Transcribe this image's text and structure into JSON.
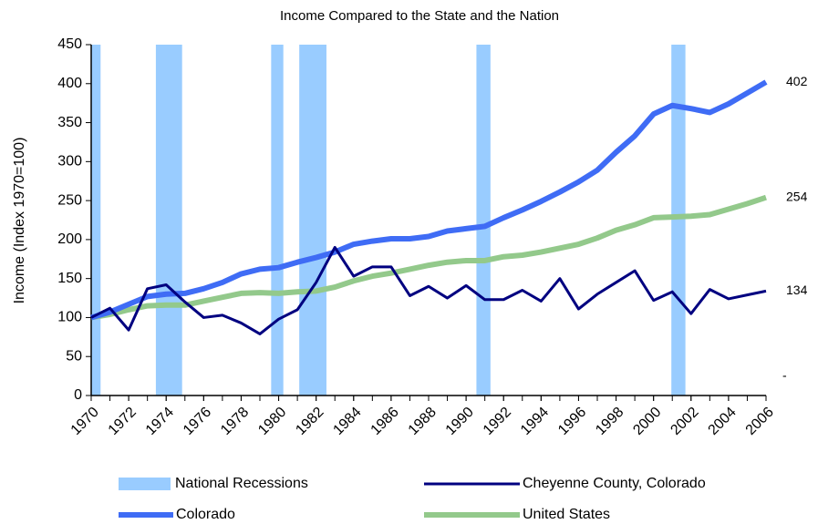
{
  "chart_data": {
    "type": "line",
    "title": "Income Compared to the State and the Nation",
    "y_label": "Income (Index 1970=100)",
    "x": [
      1970,
      1971,
      1972,
      1973,
      1974,
      1975,
      1976,
      1977,
      1978,
      1979,
      1980,
      1981,
      1982,
      1983,
      1984,
      1985,
      1986,
      1987,
      1988,
      1989,
      1990,
      1991,
      1992,
      1993,
      1994,
      1995,
      1996,
      1997,
      1998,
      1999,
      2000,
      2001,
      2002,
      2003,
      2004,
      2005,
      2006
    ],
    "xlim": [
      1970,
      2006
    ],
    "xticks": [
      1970,
      1972,
      1974,
      1976,
      1978,
      1980,
      1982,
      1984,
      1986,
      1988,
      1990,
      1992,
      1994,
      1996,
      1998,
      2000,
      2002,
      2004,
      2006
    ],
    "ylim": [
      0,
      450
    ],
    "yticks": [
      0,
      50,
      100,
      150,
      200,
      250,
      300,
      350,
      400,
      450
    ],
    "recessions": {
      "name": "National Recessions",
      "color": "#99ccff",
      "ranges": [
        [
          1970,
          1970.5
        ],
        [
          1973.45,
          1974.85
        ],
        [
          1979.6,
          1980.25
        ],
        [
          1981.1,
          1982.55
        ],
        [
          1990.55,
          1991.3
        ],
        [
          2000.95,
          2001.7
        ]
      ]
    },
    "series": [
      {
        "name": "Cheyenne County, Colorado",
        "color": "#000080",
        "width": 3,
        "values": [
          100,
          112,
          84,
          137,
          142,
          120,
          100,
          103,
          93,
          79,
          98,
          110,
          145,
          190,
          153,
          165,
          165,
          128,
          140,
          125,
          141,
          123,
          123,
          135,
          121,
          150,
          111,
          130,
          145,
          160,
          122,
          133,
          105,
          136,
          124,
          129,
          134
        ]
      },
      {
        "name": "Colorado",
        "color": "#3f6cf5",
        "width": 6,
        "values": [
          100,
          107,
          117,
          127,
          130,
          131,
          137,
          145,
          156,
          162,
          164,
          171,
          177,
          184,
          194,
          198,
          201,
          201,
          204,
          211,
          214,
          217,
          228,
          238,
          249,
          261,
          274,
          289,
          312,
          333,
          361,
          372,
          368,
          363,
          374,
          388,
          402
        ]
      },
      {
        "name": "United States",
        "color": "#93c98b",
        "width": 6,
        "values": [
          100,
          104,
          110,
          115,
          116,
          116,
          121,
          126,
          131,
          132,
          131,
          133,
          134,
          139,
          147,
          153,
          157,
          162,
          167,
          171,
          173,
          173,
          178,
          180,
          184,
          189,
          194,
          202,
          212,
          219,
          228,
          229,
          230,
          232,
          239,
          246,
          254
        ]
      }
    ],
    "annotation": "-"
  }
}
